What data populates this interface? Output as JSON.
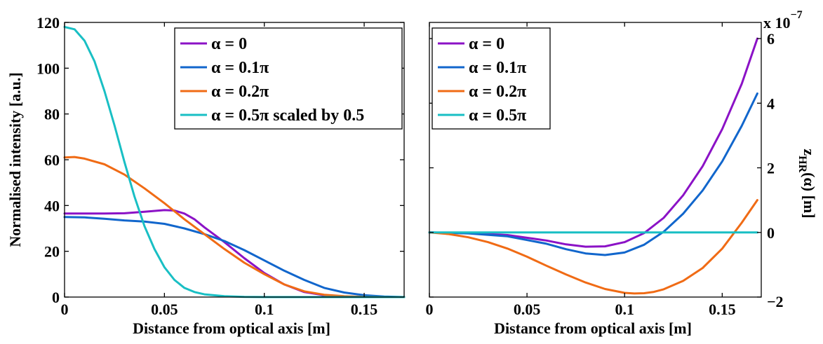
{
  "chart_data": [
    {
      "type": "line",
      "xlabel": "Distance from optical axis [m]",
      "ylabel": "Normalised intensity [a.u.]",
      "xlim": [
        0,
        0.17
      ],
      "ylim": [
        0,
        120
      ],
      "xticks": [
        0,
        0.05,
        0.1,
        0.15
      ],
      "xtick_labels": [
        "0",
        "0.05",
        "0.1",
        "0.15"
      ],
      "yticks": [
        0,
        20,
        40,
        60,
        80,
        100,
        120
      ],
      "ytick_labels": [
        "0",
        "20",
        "40",
        "60",
        "80",
        "100",
        "120"
      ],
      "legend_position": "top-right",
      "series": [
        {
          "name": "α = 0",
          "color": "#8b12c6",
          "x": [
            0,
            0.01,
            0.02,
            0.03,
            0.04,
            0.05,
            0.055,
            0.06,
            0.065,
            0.07,
            0.08,
            0.09,
            0.1,
            0.11,
            0.12,
            0.13,
            0.14,
            0.15,
            0.16,
            0.17
          ],
          "y": [
            36.5,
            36.5,
            36.5,
            36.6,
            37.3,
            38,
            37.8,
            36.5,
            34,
            30.5,
            24,
            17,
            10.5,
            5.5,
            2.2,
            0.8,
            0.3,
            0.1,
            0,
            0
          ]
        },
        {
          "name": "α = 0.1π",
          "color": "#1166cc",
          "x": [
            0,
            0.01,
            0.02,
            0.03,
            0.04,
            0.05,
            0.06,
            0.07,
            0.08,
            0.09,
            0.1,
            0.11,
            0.12,
            0.13,
            0.14,
            0.15,
            0.16,
            0.17
          ],
          "y": [
            35,
            34.8,
            34.2,
            33.5,
            33,
            32,
            30,
            27.5,
            24.5,
            20.5,
            16,
            11.5,
            7.5,
            4,
            2,
            0.8,
            0.2,
            0
          ]
        },
        {
          "name": "α = 0.2π",
          "color": "#f06b15",
          "x": [
            0,
            0.005,
            0.01,
            0.02,
            0.03,
            0.04,
            0.05,
            0.06,
            0.07,
            0.08,
            0.09,
            0.1,
            0.11,
            0.12,
            0.13,
            0.14,
            0.15,
            0.16,
            0.17
          ],
          "y": [
            61,
            61.2,
            60.5,
            58,
            53.5,
            47.5,
            41,
            34,
            27.5,
            21,
            15,
            10,
            5.5,
            2.5,
            1,
            0.4,
            0.1,
            0,
            0
          ]
        },
        {
          "name": "α = 0.5π scaled by 0.5",
          "color": "#19bfc4",
          "x": [
            0,
            0.005,
            0.01,
            0.015,
            0.02,
            0.025,
            0.03,
            0.035,
            0.04,
            0.045,
            0.05,
            0.055,
            0.06,
            0.065,
            0.07,
            0.08,
            0.09,
            0.1,
            0.12,
            0.15,
            0.17
          ],
          "y": [
            118,
            117,
            112,
            103,
            90,
            75,
            59,
            44,
            31,
            21,
            13,
            7.5,
            4,
            2.2,
            1.2,
            0.4,
            0.1,
            0,
            0,
            0,
            0
          ]
        }
      ]
    },
    {
      "type": "line",
      "xlabel": "Distance from optical axis [m]",
      "ylabel_main": "z",
      "ylabel_sub": "HR",
      "ylabel_tail": "(α) [m]",
      "exponent_base": "x 10",
      "exponent_power": "−7",
      "y_axis_side": "right",
      "xlim": [
        0,
        0.17
      ],
      "ylim": [
        -2,
        6.5
      ],
      "xticks": [
        0,
        0.05,
        0.1,
        0.15
      ],
      "xtick_labels": [
        "0",
        "0.05",
        "0.1",
        "0.15"
      ],
      "yticks": [
        -2,
        0,
        2,
        4,
        6
      ],
      "ytick_labels": [
        "−2",
        "0",
        "2",
        "4",
        "6"
      ],
      "legend_position": "top-left",
      "series": [
        {
          "name": "α = 0",
          "color": "#8b12c6",
          "x": [
            0,
            0.02,
            0.04,
            0.06,
            0.07,
            0.08,
            0.09,
            0.1,
            0.11,
            0.12,
            0.13,
            0.14,
            0.15,
            0.16,
            0.168
          ],
          "y": [
            0,
            -0.02,
            -0.08,
            -0.25,
            -0.37,
            -0.44,
            -0.43,
            -0.3,
            -0.02,
            0.45,
            1.15,
            2.05,
            3.2,
            4.6,
            6.0
          ]
        },
        {
          "name": "α = 0.1π",
          "color": "#1166cc",
          "x": [
            0,
            0.02,
            0.04,
            0.06,
            0.07,
            0.08,
            0.09,
            0.1,
            0.11,
            0.12,
            0.13,
            0.14,
            0.15,
            0.16,
            0.168
          ],
          "y": [
            0,
            -0.03,
            -0.12,
            -0.35,
            -0.52,
            -0.65,
            -0.7,
            -0.62,
            -0.38,
            0.02,
            0.58,
            1.3,
            2.2,
            3.3,
            4.3
          ]
        },
        {
          "name": "α = 0.2π",
          "color": "#f06b15",
          "x": [
            0,
            0.01,
            0.02,
            0.03,
            0.04,
            0.05,
            0.06,
            0.07,
            0.08,
            0.09,
            0.1,
            0.105,
            0.11,
            0.115,
            0.12,
            0.13,
            0.14,
            0.15,
            0.16,
            0.168
          ],
          "y": [
            0,
            -0.05,
            -0.15,
            -0.3,
            -0.5,
            -0.75,
            -1.03,
            -1.3,
            -1.55,
            -1.75,
            -1.87,
            -1.89,
            -1.88,
            -1.84,
            -1.76,
            -1.5,
            -1.1,
            -0.5,
            0.3,
            1.0
          ]
        },
        {
          "name": "α = 0.5π",
          "color": "#19bfc4",
          "x": [
            0,
            0.168
          ],
          "y": [
            0,
            0
          ]
        }
      ]
    }
  ]
}
